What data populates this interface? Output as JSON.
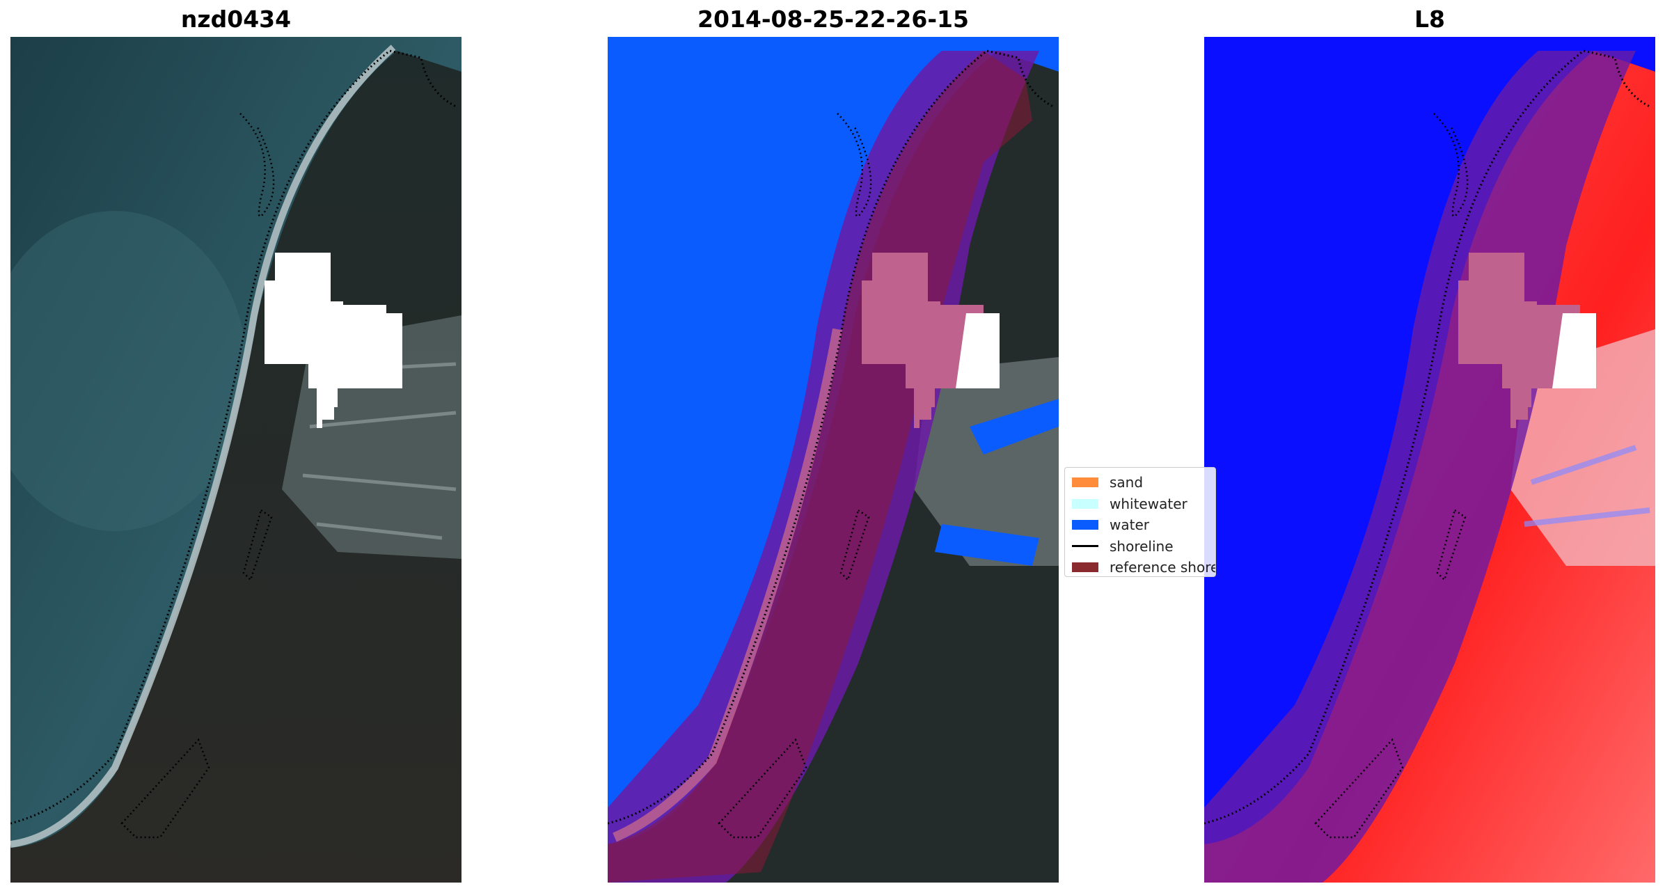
{
  "panels": [
    {
      "title": "nzd0434"
    },
    {
      "title": "2014-08-25-22-26-15"
    },
    {
      "title": "L8"
    }
  ],
  "legend": {
    "items": [
      {
        "label": "sand",
        "color": "#ff8c3a",
        "kind": "patch"
      },
      {
        "label": "whitewater",
        "color": "#c8ffff",
        "kind": "patch"
      },
      {
        "label": "water",
        "color": "#0a5cff",
        "kind": "patch"
      },
      {
        "label": "shoreline",
        "color": "#000000",
        "kind": "line"
      },
      {
        "label": "reference shoreline",
        "color": "#8b2a2e",
        "kind": "patch"
      }
    ]
  },
  "colors": {
    "ocean_rgb": "#234650",
    "land_rgb": "#202a28",
    "water_class": "#0a5cff",
    "buffer_overlay": "#6a1aa6",
    "reference_overlay": "#8b1a3a",
    "index_water": "#0a10ff",
    "index_land": "#ff3a3a"
  }
}
